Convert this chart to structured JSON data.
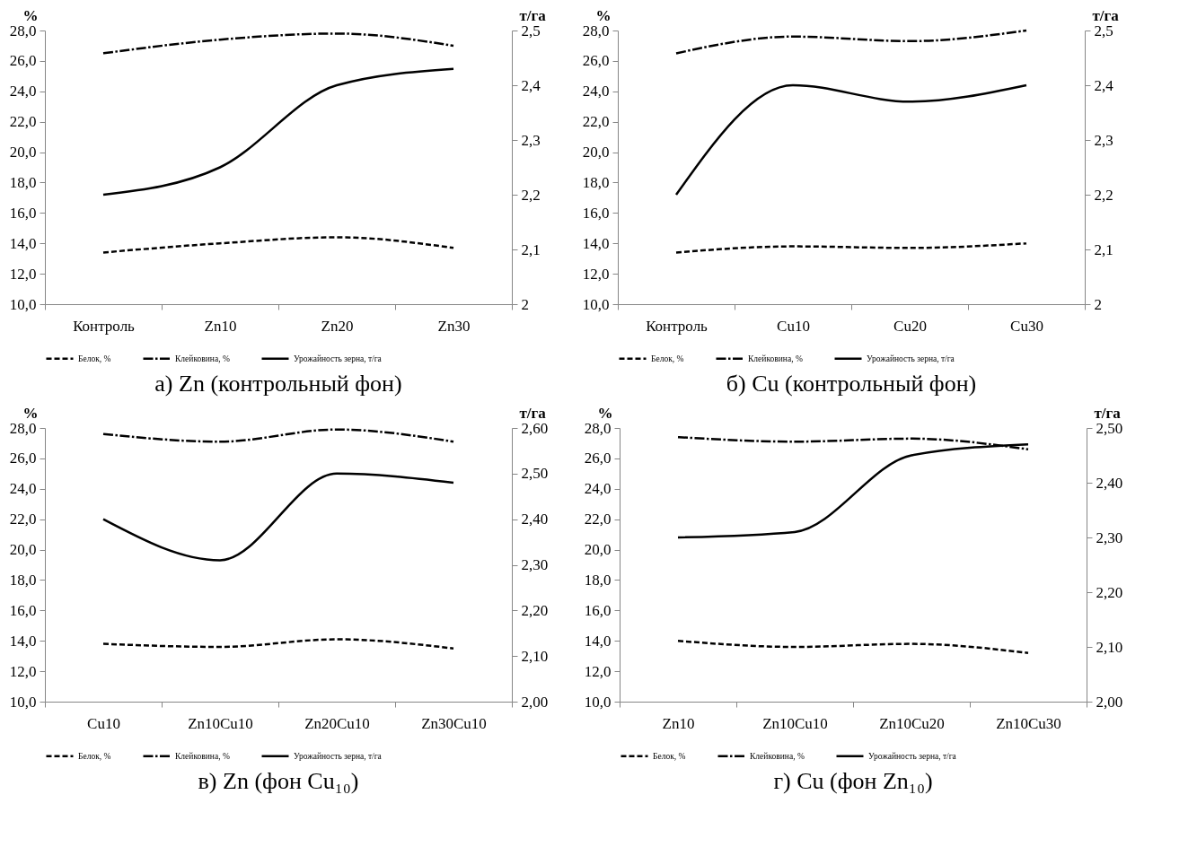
{
  "chart_data": [
    {
      "type": "line",
      "title": "а) Zn (контрольный фон)",
      "ylabel": "%",
      "y2label": "т/га",
      "categories": [
        "Контроль",
        "Zn10",
        "Zn20",
        "Zn30"
      ],
      "ylim": [
        10,
        28
      ],
      "yticks": [
        {
          "value": 10,
          "label": "10,0"
        },
        {
          "value": 12,
          "label": "12,0"
        },
        {
          "value": 14,
          "label": "14,0"
        },
        {
          "value": 16,
          "label": "16,0"
        },
        {
          "value": 18,
          "label": "18,0"
        },
        {
          "value": 20,
          "label": "20,0"
        },
        {
          "value": 22,
          "label": "22,0"
        },
        {
          "value": 24,
          "label": "24,0"
        },
        {
          "value": 26,
          "label": "26,0"
        },
        {
          "value": 28,
          "label": "28,0"
        }
      ],
      "y2lim": [
        2,
        2.5
      ],
      "y2ticks": [
        2,
        {
          "value": 2.1,
          "label": "2,1"
        },
        {
          "value": 2.2,
          "label": "2,2"
        },
        {
          "value": 2.3,
          "label": "2,3"
        },
        {
          "value": 2.4,
          "label": "2,4"
        },
        {
          "value": 2.5,
          "label": "2,5"
        }
      ],
      "legend": "bottom",
      "series": [
        {
          "name": "Белок, %",
          "color": "#000000",
          "line_style": "dashed",
          "values": [
            13.4,
            14.0,
            14.4,
            13.7
          ]
        },
        {
          "name": "Клейковина, %",
          "color": "#000000",
          "line_style": "dashdot",
          "values": [
            26.5,
            27.4,
            27.8,
            27.0
          ]
        },
        {
          "name": "Урожайность зерна, т/га",
          "color": "#000000",
          "line_style": "solid",
          "axis": "y2",
          "values": [
            2.2,
            2.25,
            2.4,
            2.43
          ]
        }
      ]
    },
    {
      "type": "line",
      "title": "б) Cu (контрольный фон)",
      "ylabel": "%",
      "y2label": "т/га",
      "categories": [
        "Контроль",
        "Cu10",
        "Cu20",
        "Cu30"
      ],
      "ylim": [
        10,
        28
      ],
      "yticks": [
        {
          "value": 10,
          "label": "10,0"
        },
        {
          "value": 12,
          "label": "12,0"
        },
        {
          "value": 14,
          "label": "14,0"
        },
        {
          "value": 16,
          "label": "16,0"
        },
        {
          "value": 18,
          "label": "18,0"
        },
        {
          "value": 20,
          "label": "20,0"
        },
        {
          "value": 22,
          "label": "22,0"
        },
        {
          "value": 24,
          "label": "24,0"
        },
        {
          "value": 26,
          "label": "26,0"
        },
        {
          "value": 28,
          "label": "28,0"
        }
      ],
      "y2lim": [
        2,
        2.5
      ],
      "y2ticks": [
        2,
        {
          "value": 2.1,
          "label": "2,1"
        },
        {
          "value": 2.2,
          "label": "2,2"
        },
        {
          "value": 2.3,
          "label": "2,3"
        },
        {
          "value": 2.4,
          "label": "2,4"
        },
        {
          "value": 2.5,
          "label": "2,5"
        }
      ],
      "legend": "bottom",
      "series": [
        {
          "name": "Белок, %",
          "color": "#000000",
          "line_style": "dashed",
          "values": [
            13.4,
            13.8,
            13.7,
            14.0
          ]
        },
        {
          "name": "Клейковина, %",
          "color": "#000000",
          "line_style": "dashdot",
          "values": [
            26.5,
            27.6,
            27.3,
            28.0
          ]
        },
        {
          "name": "Урожайность зерна, т/га",
          "color": "#000000",
          "line_style": "solid",
          "axis": "y2",
          "values": [
            2.2,
            2.4,
            2.37,
            2.4
          ]
        }
      ]
    },
    {
      "type": "line",
      "title": "в) Zn (фон Cu₁₀)",
      "ylabel": "%",
      "y2label": "т/га",
      "categories": [
        "Cu10",
        "Zn10Cu10",
        "Zn20Cu10",
        "Zn30Cu10"
      ],
      "ylim": [
        10,
        28
      ],
      "yticks": [
        {
          "value": 10,
          "label": "10,0"
        },
        {
          "value": 12,
          "label": "12,0"
        },
        {
          "value": 14,
          "label": "14,0"
        },
        {
          "value": 16,
          "label": "16,0"
        },
        {
          "value": 18,
          "label": "18,0"
        },
        {
          "value": 20,
          "label": "20,0"
        },
        {
          "value": 22,
          "label": "22,0"
        },
        {
          "value": 24,
          "label": "24,0"
        },
        {
          "value": 26,
          "label": "26,0"
        },
        {
          "value": 28,
          "label": "28,0"
        }
      ],
      "y2lim": [
        2,
        2.6
      ],
      "y2ticks": [
        {
          "value": 2,
          "label": "2,00"
        },
        {
          "value": 2.1,
          "label": "2,10"
        },
        {
          "value": 2.2,
          "label": "2,20"
        },
        {
          "value": 2.3,
          "label": "2,30"
        },
        {
          "value": 2.4,
          "label": "2,40"
        },
        {
          "value": 2.5,
          "label": "2,50"
        },
        {
          "value": 2.6,
          "label": "2,60"
        }
      ],
      "legend": "bottom",
      "series": [
        {
          "name": "Белок, %",
          "color": "#000000",
          "line_style": "dashed",
          "values": [
            13.8,
            13.6,
            14.1,
            13.5
          ]
        },
        {
          "name": "Клейковина, %",
          "color": "#000000",
          "line_style": "dashdot",
          "values": [
            27.6,
            27.1,
            27.9,
            27.1
          ]
        },
        {
          "name": "Урожайность зерна, т/га",
          "color": "#000000",
          "line_style": "solid",
          "axis": "y2",
          "values": [
            2.4,
            2.31,
            2.5,
            2.48
          ]
        }
      ]
    },
    {
      "type": "line",
      "title": "г) Cu (фон Zn₁₀)",
      "ylabel": "%",
      "y2label": "т/га",
      "categories": [
        "Zn10",
        "Zn10Cu10",
        "Zn10Cu20",
        "Zn10Cu30"
      ],
      "ylim": [
        10,
        28
      ],
      "yticks": [
        {
          "value": 10,
          "label": "10,0"
        },
        {
          "value": 12,
          "label": "12,0"
        },
        {
          "value": 14,
          "label": "14,0"
        },
        {
          "value": 16,
          "label": "16,0"
        },
        {
          "value": 18,
          "label": "18,0"
        },
        {
          "value": 20,
          "label": "20,0"
        },
        {
          "value": 22,
          "label": "22,0"
        },
        {
          "value": 24,
          "label": "24,0"
        },
        {
          "value": 26,
          "label": "26,0"
        },
        {
          "value": 28,
          "label": "28,0"
        }
      ],
      "y2lim": [
        2,
        2.5
      ],
      "y2ticks": [
        {
          "value": 2,
          "label": "2,00"
        },
        {
          "value": 2.1,
          "label": "2,10"
        },
        {
          "value": 2.2,
          "label": "2,20"
        },
        {
          "value": 2.3,
          "label": "2,30"
        },
        {
          "value": 2.4,
          "label": "2,40"
        },
        {
          "value": 2.5,
          "label": "2,50"
        }
      ],
      "legend": "bottom",
      "series": [
        {
          "name": "Белок, %",
          "color": "#000000",
          "line_style": "dashed",
          "values": [
            14.0,
            13.6,
            13.8,
            13.2
          ]
        },
        {
          "name": "Клейковина, %",
          "color": "#000000",
          "line_style": "dashdot",
          "values": [
            27.4,
            27.1,
            27.3,
            26.6
          ]
        },
        {
          "name": "Урожайность зерна, т/га",
          "color": "#000000",
          "line_style": "solid",
          "axis": "y2",
          "values": [
            2.3,
            2.31,
            2.45,
            2.47
          ]
        }
      ]
    }
  ]
}
